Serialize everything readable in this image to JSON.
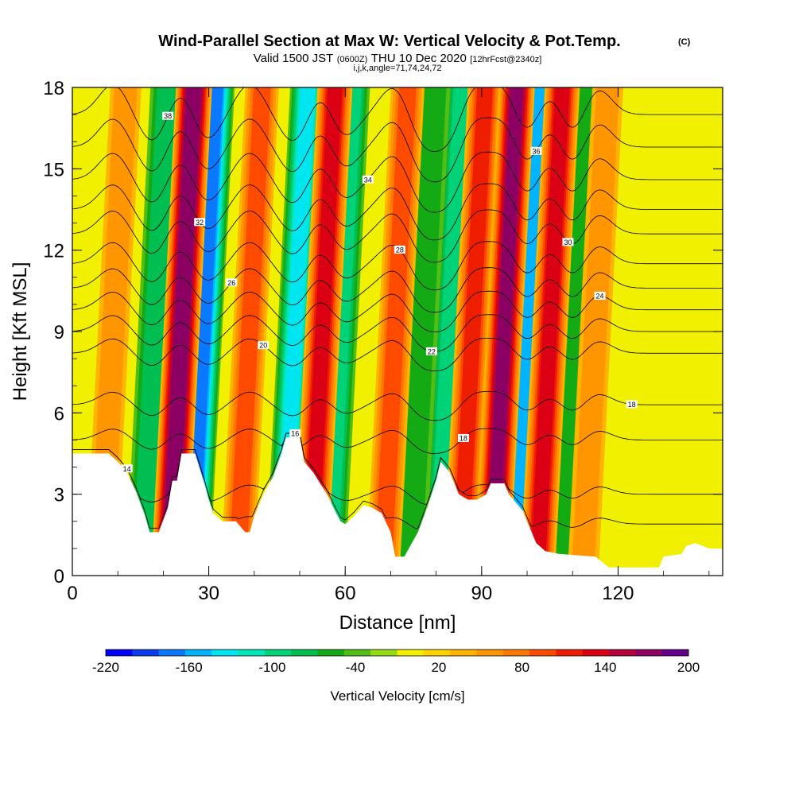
{
  "chart_data": {
    "type": "heatmap",
    "title": "Wind-Parallel Section at Max W: Vertical Velocity & Pot.Temp.",
    "title_units": "(C)",
    "subtitle_prefix": "Valid 1500 JST",
    "subtitle_z": "(0600Z)",
    "subtitle_date": "THU 10 Dec 2020",
    "subtitle_fcst": "[12hrFcst@2340z]",
    "subtitle2": "i,j,k,angle=71,74,24,72",
    "xlabel": "Distance [nm]",
    "ylabel": "Height [Kft MSL]",
    "xlim": [
      0,
      143
    ],
    "ylim": [
      0,
      18
    ],
    "x_ticks": [
      0,
      30,
      60,
      90,
      120
    ],
    "y_ticks": [
      0,
      3,
      6,
      9,
      12,
      15,
      18
    ],
    "colorbar": {
      "label": "Vertical Velocity [cm/s]",
      "levels": [
        -220,
        -200,
        -180,
        -160,
        -140,
        -120,
        -100,
        -80,
        -60,
        -40,
        -20,
        0,
        20,
        40,
        60,
        80,
        100,
        120,
        140,
        160,
        180,
        200
      ],
      "tick_labels": [
        "-220",
        "-160",
        "-100",
        "-40",
        "20",
        "80",
        "140",
        "200"
      ],
      "colors": [
        "#0000ff",
        "#0a3cf0",
        "#0a78ff",
        "#00b4ff",
        "#00e6f0",
        "#00e6b4",
        "#00d278",
        "#00be50",
        "#14aa14",
        "#50be14",
        "#96dc14",
        "#f0f000",
        "#ffd200",
        "#ffb400",
        "#ff9600",
        "#ff7800",
        "#ff4b00",
        "#f01e00",
        "#dc0014",
        "#b4003c",
        "#8c0064",
        "#64008c"
      ]
    },
    "updrafts": [
      {
        "x": 24,
        "peak_cm_s": 200
      },
      {
        "x": 39,
        "peak_cm_s": 100
      },
      {
        "x": 55,
        "peak_cm_s": 140
      },
      {
        "x": 71,
        "peak_cm_s": 100
      },
      {
        "x": 88,
        "peak_cm_s": 120
      },
      {
        "x": 95,
        "peak_cm_s": 180
      },
      {
        "x": 105,
        "peak_cm_s": 140
      },
      {
        "x": 9,
        "peak_cm_s": 60
      },
      {
        "x": 115,
        "peak_cm_s": 60
      }
    ],
    "downdrafts": [
      {
        "x": 29,
        "peak_cm_s": -180
      },
      {
        "x": 49,
        "peak_cm_s": -140
      },
      {
        "x": 59,
        "peak_cm_s": -100
      },
      {
        "x": 83,
        "peak_cm_s": -100
      },
      {
        "x": 100,
        "peak_cm_s": -160
      },
      {
        "x": 18,
        "peak_cm_s": -80
      },
      {
        "x": 77,
        "peak_cm_s": -60
      },
      {
        "x": 110,
        "peak_cm_s": -60
      }
    ],
    "terrain_kft": [
      [
        0,
        4.5
      ],
      [
        8,
        4.5
      ],
      [
        10,
        4.2
      ],
      [
        12,
        3.8
      ],
      [
        14,
        3.1
      ],
      [
        16,
        2.2
      ],
      [
        17,
        1.6
      ],
      [
        19,
        1.6
      ],
      [
        21,
        2.5
      ],
      [
        22,
        3.5
      ],
      [
        23,
        3.5
      ],
      [
        24,
        4.5
      ],
      [
        27,
        4.5
      ],
      [
        29,
        3.4
      ],
      [
        30,
        2.8
      ],
      [
        31,
        2.3
      ],
      [
        33,
        2.0
      ],
      [
        36,
        2.0
      ],
      [
        38,
        1.6
      ],
      [
        39,
        1.6
      ],
      [
        40,
        2.2
      ],
      [
        42,
        3.0
      ],
      [
        44,
        3.6
      ],
      [
        46,
        4.5
      ],
      [
        47,
        5.1
      ],
      [
        50,
        5.1
      ],
      [
        51,
        4.2
      ],
      [
        53,
        3.8
      ],
      [
        56,
        3.0
      ],
      [
        58,
        2.3
      ],
      [
        59,
        2.0
      ],
      [
        60,
        1.9
      ],
      [
        62,
        2.2
      ],
      [
        64,
        2.6
      ],
      [
        66,
        2.5
      ],
      [
        68,
        2.3
      ],
      [
        70,
        1.6
      ],
      [
        71,
        0.7
      ],
      [
        73,
        0.7
      ],
      [
        74,
        1.0
      ],
      [
        76,
        1.6
      ],
      [
        78,
        2.5
      ],
      [
        80,
        3.5
      ],
      [
        81,
        4.2
      ],
      [
        83,
        3.8
      ],
      [
        85,
        3.0
      ],
      [
        87,
        2.8
      ],
      [
        89,
        2.8
      ],
      [
        91,
        3.0
      ],
      [
        92,
        3.4
      ],
      [
        95,
        3.4
      ],
      [
        96,
        3.0
      ],
      [
        99,
        2.4
      ],
      [
        100,
        2.0
      ],
      [
        102,
        1.2
      ],
      [
        104,
        0.9
      ],
      [
        107,
        0.8
      ],
      [
        115,
        0.7
      ],
      [
        118,
        0.3
      ],
      [
        129,
        0.3
      ],
      [
        130,
        0.7
      ],
      [
        134,
        0.8
      ],
      [
        135,
        1.1
      ],
      [
        137,
        1.2
      ],
      [
        140,
        1.0
      ],
      [
        143,
        1.0
      ]
    ],
    "theta_contours": [
      {
        "label": "14",
        "base": 1.9
      },
      {
        "label": "16",
        "base": 3.0
      },
      {
        "label": "18",
        "base": 5.0
      },
      {
        "label": "18",
        "base": 6.3
      },
      {
        "label": "20",
        "base": 8.2
      },
      {
        "label": "22",
        "base": 9.0
      },
      {
        "label": "24",
        "base": 9.8
      },
      {
        "label": "26",
        "base": 10.6
      },
      {
        "label": "28",
        "base": 11.5
      },
      {
        "label": "30",
        "base": 12.6
      },
      {
        "label": "32",
        "base": 13.5
      },
      {
        "label": "34",
        "base": 14.6
      },
      {
        "label": "36",
        "base": 15.8
      },
      {
        "label": "38",
        "base": 17.0
      }
    ]
  }
}
